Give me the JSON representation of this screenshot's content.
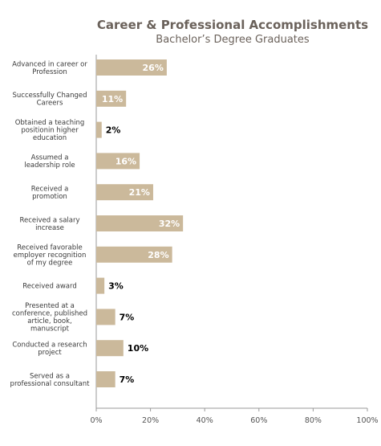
{
  "chart_data": {
    "type": "bar",
    "orientation": "horizontal",
    "title": "Career & Professional Accomplishments",
    "subtitle": "Bachelor’s Degree Graduates",
    "categories": [
      [
        "Advanced in career or",
        "Profession"
      ],
      [
        "Successfully Changed",
        "Careers"
      ],
      [
        "Obtained a  teaching",
        "positionin higher",
        "education"
      ],
      [
        "Assumed a",
        "leadership role"
      ],
      [
        "Received a",
        "promotion"
      ],
      [
        "Received a salary",
        "increase"
      ],
      [
        "Received favorable",
        "employer recognition",
        "of my degree"
      ],
      [
        "Received award"
      ],
      [
        "Presented at a",
        "conference, published",
        "article, book,",
        "manuscript"
      ],
      [
        "Conducted a research",
        "project"
      ],
      [
        "Served as a",
        "professional consultant"
      ]
    ],
    "values": [
      26,
      11,
      2,
      16,
      21,
      32,
      28,
      3,
      7,
      10,
      7
    ],
    "value_labels": [
      "26%",
      "11%",
      "2%",
      "16%",
      "21%",
      "32%",
      "28%",
      "3%",
      "7%",
      "10%",
      "7%"
    ],
    "xlim": [
      0,
      100
    ],
    "xticks": [
      "0%",
      "20%",
      "40%",
      "60%",
      "80%",
      "100%"
    ],
    "bar_color": "#cbb99b",
    "grid": false
  }
}
